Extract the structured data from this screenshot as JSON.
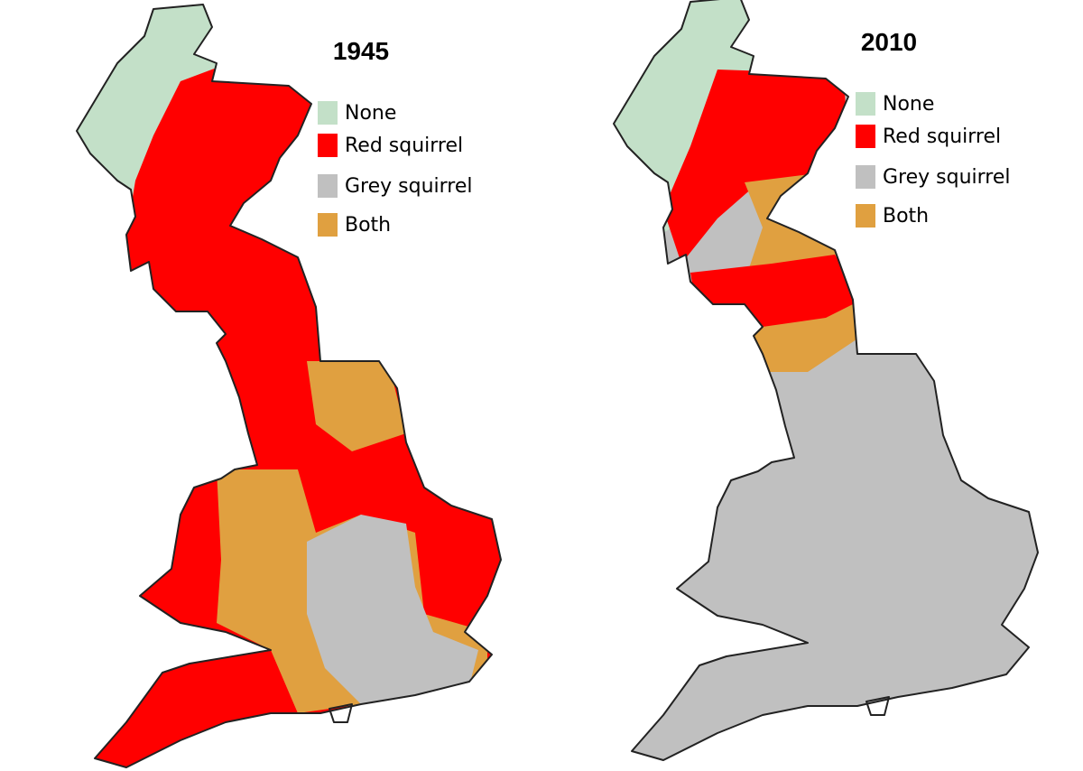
{
  "maps": [
    {
      "title": "1945",
      "legend": [
        {
          "label": "None",
          "color": "#c3e0c8"
        },
        {
          "label": "Red squirrel",
          "color": "#ff0000"
        },
        {
          "label": "Grey squirrel",
          "color": "#c0c0c0"
        },
        {
          "label": "Both",
          "color": "#e0a040"
        }
      ]
    },
    {
      "title": "2010",
      "legend": [
        {
          "label": "None",
          "color": "#c3e0c8"
        },
        {
          "label": "Red squirrel",
          "color": "#ff0000"
        },
        {
          "label": "Grey squirrel",
          "color": "#c0c0c0"
        },
        {
          "label": "Both",
          "color": "#e0a040"
        }
      ]
    }
  ]
}
